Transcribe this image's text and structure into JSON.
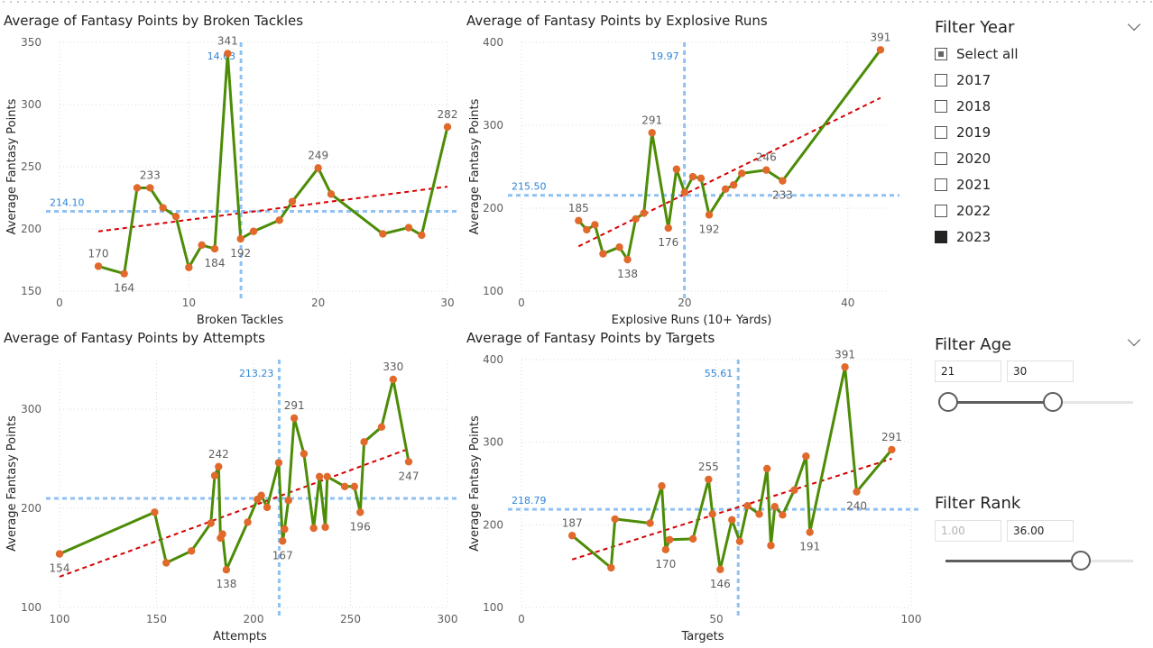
{
  "chart_data": [
    {
      "type": "line",
      "title": "Average of Fantasy Points by Broken Tackles",
      "xlabel": "Broken Tackles",
      "ylabel": "Average Fantasy Points",
      "xlim": [
        0,
        30
      ],
      "ylim": [
        150,
        350
      ],
      "xticks": [
        0,
        10,
        20,
        30
      ],
      "yticks": [
        150,
        200,
        250,
        300,
        350
      ],
      "x": [
        3,
        5,
        6,
        7,
        8,
        9,
        10,
        11,
        12,
        13,
        14,
        15,
        17,
        18,
        20,
        21,
        25,
        27,
        28,
        30
      ],
      "y": [
        170,
        164,
        233,
        233,
        217,
        210,
        169,
        187,
        184,
        341,
        192,
        198,
        207,
        222,
        249,
        228,
        196,
        201,
        195,
        282
      ],
      "point_labels": [
        {
          "x": 3,
          "y": 170,
          "text": "170"
        },
        {
          "x": 5,
          "y": 164,
          "text": "164"
        },
        {
          "x": 7,
          "y": 233,
          "text": "233"
        },
        {
          "x": 12,
          "y": 184,
          "text": "184"
        },
        {
          "x": 13,
          "y": 341,
          "text": "341"
        },
        {
          "x": 14,
          "y": 192,
          "text": "192"
        },
        {
          "x": 20,
          "y": 249,
          "text": "249"
        },
        {
          "x": 30,
          "y": 282,
          "text": "282"
        }
      ],
      "avg_x": 14.03,
      "avg_x_label": "14.03",
      "avg_y": 214.1,
      "avg_y_label": "214.10",
      "trend": {
        "x1": 3,
        "y1": 198,
        "x2": 30,
        "y2": 234
      }
    },
    {
      "type": "line",
      "title": "Average of Fantasy Points by Explosive Runs",
      "xlabel": "Explosive Runs (10+ Yards)",
      "ylabel": "Average Fantasy Points",
      "xlim": [
        0,
        45
      ],
      "ylim": [
        100,
        400
      ],
      "xticks": [
        0,
        20,
        40
      ],
      "yticks": [
        100,
        200,
        300,
        400
      ],
      "x": [
        7,
        8,
        9,
        10,
        12,
        13,
        14,
        15,
        16,
        18,
        19,
        20,
        21,
        22,
        23,
        25,
        26,
        27,
        30,
        32,
        44
      ],
      "y": [
        185,
        174,
        180,
        145,
        153,
        138,
        187,
        194,
        291,
        176,
        247,
        219,
        238,
        236,
        192,
        223,
        228,
        242,
        246,
        233,
        391
      ],
      "point_labels": [
        {
          "x": 7,
          "y": 185,
          "text": "185"
        },
        {
          "x": 13,
          "y": 138,
          "text": "138"
        },
        {
          "x": 16,
          "y": 291,
          "text": "291"
        },
        {
          "x": 18,
          "y": 176,
          "text": "176"
        },
        {
          "x": 23,
          "y": 192,
          "text": "192"
        },
        {
          "x": 30,
          "y": 246,
          "text": "246"
        },
        {
          "x": 32,
          "y": 233,
          "text": "233"
        },
        {
          "x": 44,
          "y": 391,
          "text": "391"
        }
      ],
      "avg_x": 19.97,
      "avg_x_label": "19.97",
      "avg_y": 215.5,
      "avg_y_label": "215.50",
      "trend": {
        "x1": 7,
        "y1": 154,
        "x2": 44,
        "y2": 333
      }
    },
    {
      "type": "line",
      "title": "Average of Fantasy Points by Attempts",
      "xlabel": "Attempts",
      "ylabel": "Average Fantasy Points",
      "xlim": [
        100,
        300
      ],
      "ylim": [
        100,
        350
      ],
      "xticks": [
        100,
        150,
        200,
        250,
        300
      ],
      "yticks": [
        100,
        200,
        300
      ],
      "x": [
        100,
        149,
        155,
        168,
        178,
        180,
        182,
        183,
        184,
        186,
        197,
        202,
        204,
        207,
        213,
        215,
        216,
        218,
        221,
        226,
        231,
        234,
        237,
        238,
        247,
        252,
        255,
        257,
        266,
        272,
        280
      ],
      "y": [
        154,
        196,
        145,
        157,
        185,
        233,
        242,
        170,
        174,
        138,
        186,
        209,
        213,
        201,
        246,
        167,
        179,
        208,
        291,
        255,
        180,
        232,
        181,
        232,
        222,
        222,
        196,
        267,
        282,
        330,
        247
      ],
      "point_labels": [
        {
          "x": 100,
          "y": 154,
          "text": "154"
        },
        {
          "x": 182,
          "y": 242,
          "text": "242"
        },
        {
          "x": 186,
          "y": 138,
          "text": "138"
        },
        {
          "x": 215,
          "y": 167,
          "text": "167"
        },
        {
          "x": 221,
          "y": 291,
          "text": "291"
        },
        {
          "x": 255,
          "y": 196,
          "text": "196"
        },
        {
          "x": 272,
          "y": 330,
          "text": "330"
        },
        {
          "x": 280,
          "y": 247,
          "text": "247"
        }
      ],
      "avg_x": 213.23,
      "avg_x_label": "213.23",
      "avg_y": 210,
      "avg_y_label": "",
      "trend": {
        "x1": 100,
        "y1": 131,
        "x2": 280,
        "y2": 260
      }
    },
    {
      "type": "line",
      "title": "Average of Fantasy Points by Targets",
      "xlabel": "Targets",
      "ylabel": "Average Fantasy Points",
      "xlim": [
        0,
        100
      ],
      "ylim": [
        100,
        400
      ],
      "xticks": [
        0,
        50,
        100
      ],
      "yticks": [
        100,
        200,
        300,
        400
      ],
      "x": [
        13,
        23,
        24,
        33,
        36,
        37,
        38,
        44,
        48,
        49,
        51,
        54,
        56,
        58,
        61,
        63,
        64,
        65,
        67,
        70,
        73,
        74,
        83,
        86,
        95
      ],
      "y": [
        187,
        148,
        207,
        202,
        247,
        170,
        182,
        183,
        255,
        213,
        146,
        206,
        180,
        223,
        213,
        268,
        175,
        222,
        212,
        242,
        283,
        191,
        391,
        240,
        291
      ],
      "point_labels": [
        {
          "x": 13,
          "y": 187,
          "text": "187"
        },
        {
          "x": 37,
          "y": 170,
          "text": "170"
        },
        {
          "x": 48,
          "y": 255,
          "text": "255"
        },
        {
          "x": 51,
          "y": 146,
          "text": "146"
        },
        {
          "x": 74,
          "y": 191,
          "text": "191"
        },
        {
          "x": 83,
          "y": 391,
          "text": "391"
        },
        {
          "x": 86,
          "y": 240,
          "text": "240"
        },
        {
          "x": 95,
          "y": 291,
          "text": "291"
        }
      ],
      "avg_x": 55.61,
      "avg_x_label": "55.61",
      "avg_y": 218.79,
      "avg_y_label": "218.79",
      "trend": {
        "x1": 13,
        "y1": 158,
        "x2": 95,
        "y2": 280
      }
    }
  ],
  "colors": {
    "line": "#4c8c06",
    "marker": "#e0692b",
    "trend": "#d60000",
    "avg": "#8fc1f5",
    "avg_label": "#2f84d8",
    "grid": "#d9d9d9",
    "axis_text": "#605e5c"
  },
  "filters": {
    "year": {
      "title": "Filter Year",
      "options": [
        {
          "label": "Select all",
          "state": "partial"
        },
        {
          "label": "2017",
          "state": "unchecked"
        },
        {
          "label": "2018",
          "state": "unchecked"
        },
        {
          "label": "2019",
          "state": "unchecked"
        },
        {
          "label": "2020",
          "state": "unchecked"
        },
        {
          "label": "2021",
          "state": "unchecked"
        },
        {
          "label": "2022",
          "state": "unchecked"
        },
        {
          "label": "2023",
          "state": "checked"
        }
      ]
    },
    "age": {
      "title": "Filter Age",
      "min_value": "21",
      "max_value": "30",
      "range_low": 21,
      "range_high": 30
    },
    "rank": {
      "title": "Filter Rank",
      "min_placeholder": "1.00",
      "max_value": "36.00",
      "value": 36
    }
  }
}
